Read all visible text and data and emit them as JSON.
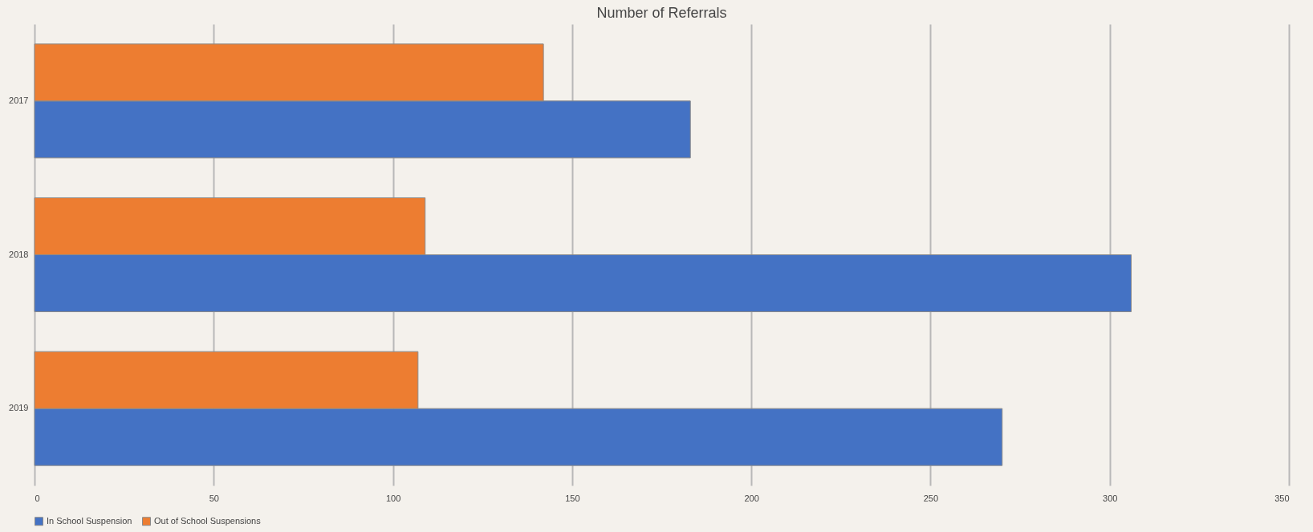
{
  "chart_data": {
    "type": "bar",
    "title": "Number of Referrals",
    "orientation": "horizontal",
    "categories": [
      "2017",
      "2018",
      "2019"
    ],
    "series": [
      {
        "name": "In School Suspension",
        "color": "#4472c4",
        "values": [
          183,
          306,
          270
        ]
      },
      {
        "name": "Out of School Suspensions",
        "color": "#ed7d31",
        "values": [
          142,
          109,
          107
        ]
      }
    ],
    "xlim": [
      0,
      350
    ],
    "xticks": [
      0,
      50,
      100,
      150,
      200,
      250,
      300,
      350
    ],
    "grid": "x",
    "legend": "bottom"
  }
}
